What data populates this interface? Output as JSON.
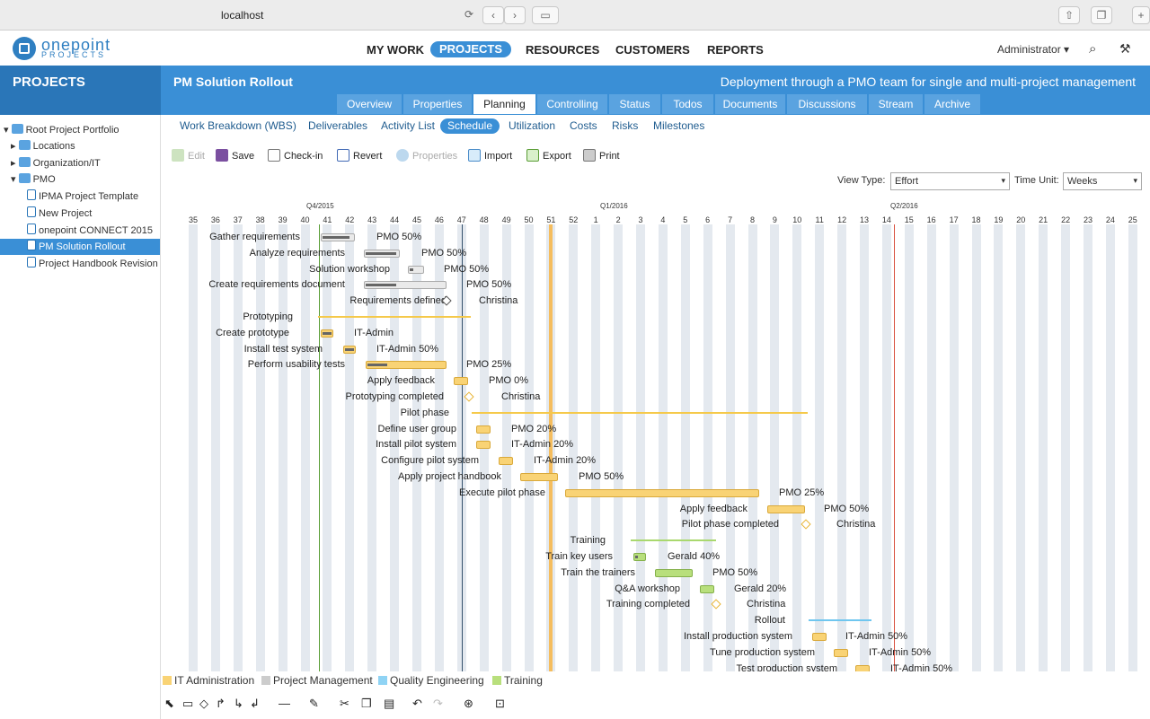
{
  "browser": {
    "url": "localhost"
  },
  "logo": {
    "name": "onepoint",
    "sub": "PROJECTS"
  },
  "nav": {
    "items": [
      "MY WORK",
      "PROJECTS",
      "RESOURCES",
      "CUSTOMERS",
      "REPORTS"
    ],
    "user": "Administrator ▾"
  },
  "sidebar": {
    "title": "PROJECTS",
    "tree": [
      "Root Project Portfolio",
      "Locations",
      "Organization/IT",
      "PMO",
      "IPMA Project Template",
      "New Project",
      "onepoint CONNECT 2015",
      "PM Solution Rollout",
      "Project Handbook Revision"
    ]
  },
  "project": {
    "title": "PM Solution Rollout",
    "description": "Deployment through a PMO team for single and multi-project management"
  },
  "tabs": [
    "Overview",
    "Properties",
    "Planning",
    "Controlling",
    "Status",
    "Todos",
    "Documents",
    "Discussions",
    "Stream",
    "Archive"
  ],
  "subtabs": [
    "Work Breakdown (WBS)",
    "Deliverables",
    "Activity List",
    "Schedule",
    "Utilization",
    "Costs",
    "Risks",
    "Milestones"
  ],
  "toolbar": [
    "Edit",
    "Save",
    "Check-in",
    "Revert",
    "Properties",
    "Import",
    "Export",
    "Print"
  ],
  "view": {
    "view_type_label": "View Type:",
    "view_type": "Effort",
    "time_unit_label": "Time Unit:",
    "time_unit": "Weeks"
  },
  "timeline": {
    "quarters": [
      "Q4/2015",
      "Q1/2016",
      "Q2/2016"
    ],
    "weeks": [
      "35",
      "36",
      "37",
      "38",
      "39",
      "40",
      "41",
      "42",
      "43",
      "44",
      "45",
      "46",
      "47",
      "48",
      "49",
      "50",
      "51",
      "52",
      "1",
      "2",
      "3",
      "4",
      "5",
      "6",
      "7",
      "8",
      "9",
      "10",
      "11",
      "12",
      "13",
      "14",
      "15",
      "16",
      "17",
      "18",
      "19",
      "20",
      "21",
      "22",
      "23",
      "24",
      "25"
    ]
  },
  "tasks": [
    {
      "name": "Gather requirements",
      "res": "PMO 50%"
    },
    {
      "name": "Analyze requirements",
      "res": "PMO 50%"
    },
    {
      "name": "Solution workshop",
      "res": "PMO 50%"
    },
    {
      "name": "Create requirements document",
      "res": "PMO 50%"
    },
    {
      "name": "Requirements defined",
      "res": "Christina"
    },
    {
      "name": "Prototyping",
      "res": ""
    },
    {
      "name": "Create prototype",
      "res": "IT-Admin"
    },
    {
      "name": "Install test system",
      "res": "IT-Admin 50%"
    },
    {
      "name": "Perform usability tests",
      "res": "PMO 25%"
    },
    {
      "name": "Apply feedback",
      "res": "PMO 0%"
    },
    {
      "name": "Prototyping completed",
      "res": "Christina"
    },
    {
      "name": "Pilot phase",
      "res": ""
    },
    {
      "name": "Define user group",
      "res": "PMO 20%"
    },
    {
      "name": "Install pilot system",
      "res": "IT-Admin 20%"
    },
    {
      "name": "Configure pilot system",
      "res": "IT-Admin 20%"
    },
    {
      "name": "Apply project handbook",
      "res": "PMO 50%"
    },
    {
      "name": "Execute pilot phase",
      "res": "PMO 25%"
    },
    {
      "name": "Apply feedback",
      "res": "PMO 50%"
    },
    {
      "name": "Pilot phase completed",
      "res": "Christina"
    },
    {
      "name": "Training",
      "res": ""
    },
    {
      "name": "Train key users",
      "res": "Gerald 40%"
    },
    {
      "name": "Train the trainers",
      "res": "PMO 50%"
    },
    {
      "name": "Q&A workshop",
      "res": "Gerald 20%"
    },
    {
      "name": "Training completed",
      "res": "Christina"
    },
    {
      "name": "Rollout",
      "res": ""
    },
    {
      "name": "Install production system",
      "res": "IT-Admin 50%"
    },
    {
      "name": "Tune production system",
      "res": "IT-Admin 50%"
    },
    {
      "name": "Test production system",
      "res": "IT-Admin 50%"
    }
  ],
  "legend": [
    {
      "label": "IT Administration",
      "color": "#f9d375"
    },
    {
      "label": "Project Management",
      "color": "#cccccc"
    },
    {
      "label": "Quality Engineering",
      "color": "#8fd3f4"
    },
    {
      "label": "Training",
      "color": "#b8df7c"
    }
  ]
}
